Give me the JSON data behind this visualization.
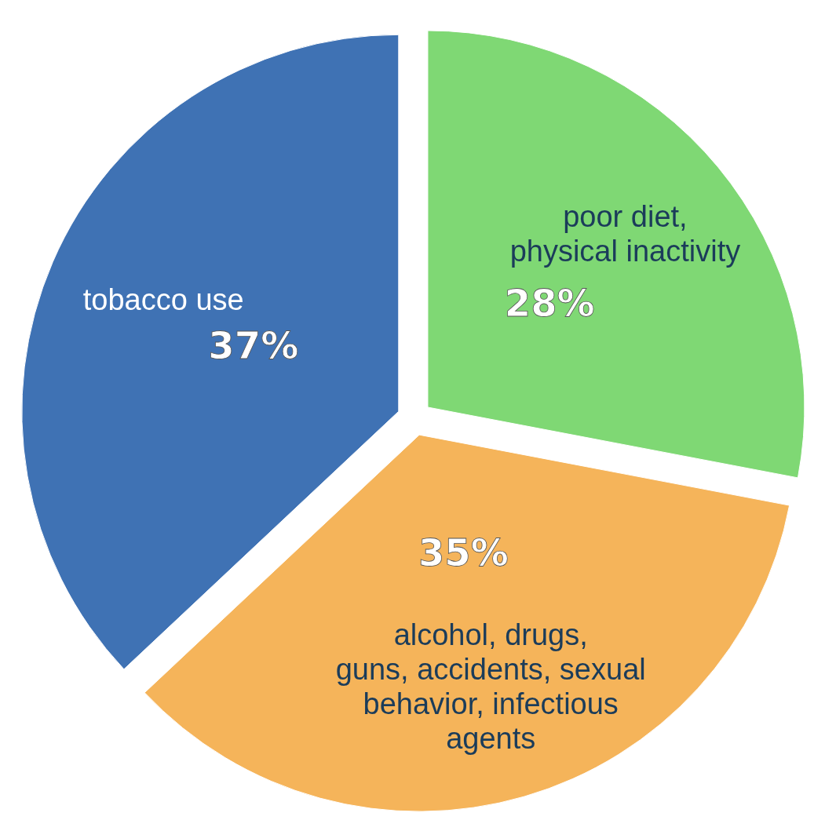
{
  "chart_data": {
    "type": "pie",
    "categories": [
      "poor diet,\nphysical inactivity",
      "alcohol, drugs,\nguns, accidents, sexual\nbehavior, infectious\nagents",
      "tobacco use"
    ],
    "values": [
      28,
      35,
      37
    ],
    "colors": [
      "#7fd874",
      "#f5b45a",
      "#3f72b4"
    ],
    "value_labels": [
      "28%",
      "35%",
      "37%"
    ]
  }
}
